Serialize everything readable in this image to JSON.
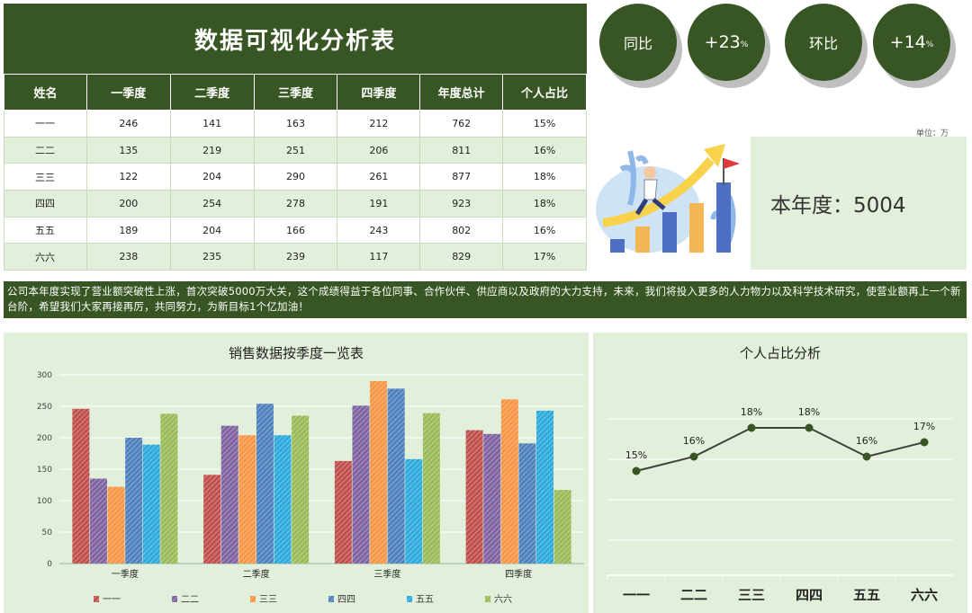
{
  "header": {
    "title": "数据可视化分析表",
    "yoy_label": "同比",
    "yoy_value": "+23",
    "qoq_label": "环比",
    "qoq_value": "+14",
    "percent_sign": "%"
  },
  "unit_label": "单位：万",
  "year_total_text": "本年度：5004",
  "table": {
    "columns": [
      "姓名",
      "一季度",
      "二季度",
      "三季度",
      "四季度",
      "年度总计",
      "个人占比"
    ],
    "rows": [
      [
        "一一",
        "246",
        "141",
        "163",
        "212",
        "762",
        "15%"
      ],
      [
        "二二",
        "135",
        "219",
        "251",
        "206",
        "811",
        "16%"
      ],
      [
        "三三",
        "122",
        "204",
        "290",
        "261",
        "877",
        "18%"
      ],
      [
        "四四",
        "200",
        "254",
        "278",
        "191",
        "923",
        "18%"
      ],
      [
        "五五",
        "189",
        "204",
        "166",
        "243",
        "802",
        "16%"
      ],
      [
        "六六",
        "238",
        "235",
        "239",
        "117",
        "829",
        "17%"
      ]
    ]
  },
  "note_text": "公司本年度实现了营业额突破性上涨，首次突破5000万大关，这个成绩得益于各位同事、合作伙伴、供应商以及政府的大力支持，未来，我们将投入更多的人力物力以及科学技术研究，使营业额再上一个新台阶，希望我们大家再接再厉，共同努力，为新目标1个亿加油！",
  "colors": {
    "dark_green": "#375623",
    "light_green": "#e2efda",
    "series": [
      "#c0504d",
      "#8064a2",
      "#f79646",
      "#4f81bd",
      "#2eaadc",
      "#9bbb59"
    ]
  },
  "chart_data": [
    {
      "type": "bar",
      "title": "销售数据按季度一览表",
      "categories": [
        "一季度",
        "二季度",
        "三季度",
        "四季度"
      ],
      "ylim": [
        0,
        300
      ],
      "yticks": [
        0,
        50,
        100,
        150,
        200,
        250,
        300
      ],
      "grid": true,
      "legend": "bottom",
      "series": [
        {
          "name": "一一",
          "values": [
            246,
            141,
            163,
            212
          ]
        },
        {
          "name": "二二",
          "values": [
            135,
            219,
            251,
            206
          ]
        },
        {
          "name": "三三",
          "values": [
            122,
            204,
            290,
            261
          ]
        },
        {
          "name": "四四",
          "values": [
            200,
            254,
            278,
            191
          ]
        },
        {
          "name": "五五",
          "values": [
            189,
            204,
            166,
            243
          ]
        },
        {
          "name": "六六",
          "values": [
            238,
            235,
            239,
            117
          ]
        }
      ]
    },
    {
      "type": "line",
      "title": "个人占比分析",
      "categories": [
        "一一",
        "二二",
        "三三",
        "四四",
        "五五",
        "六六"
      ],
      "values": [
        15,
        16,
        18,
        18,
        16,
        17
      ],
      "labels": [
        "15%",
        "16%",
        "18%",
        "18%",
        "16%",
        "17%"
      ],
      "ylim": [
        0,
        22
      ],
      "grid": true
    }
  ]
}
